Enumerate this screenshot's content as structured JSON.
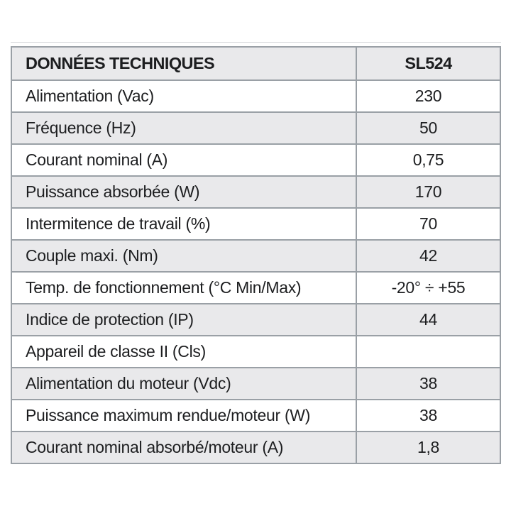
{
  "table": {
    "header": {
      "label": "DONNÉES TECHNIQUES",
      "model": "SL524"
    },
    "rows": [
      {
        "label": "Alimentation (Vac)",
        "value": "230"
      },
      {
        "label": "Fréquence (Hz)",
        "value": "50"
      },
      {
        "label": "Courant nominal (A)",
        "value": "0,75"
      },
      {
        "label": "Puissance absorbée (W)",
        "value": "170"
      },
      {
        "label": "Intermitence de travail (%)",
        "value": "70"
      },
      {
        "label": "Couple maxi. (Nm)",
        "value": "42"
      },
      {
        "label": "Temp. de fonctionnement (°C Min/Max)",
        "value": "-20° ÷ +55"
      },
      {
        "label": "Indice de protection (IP)",
        "value": "44"
      },
      {
        "label": "Appareil de classe II (Cls)",
        "value": ""
      },
      {
        "label": "Alimentation du moteur (Vdc)",
        "value": "38"
      },
      {
        "label": "Puissance maximum rendue/moteur (W)",
        "value": "38"
      },
      {
        "label": "Courant nominal absorbé/moteur (A)",
        "value": "1,8"
      }
    ],
    "colors": {
      "header_bg": "#e9e9eb",
      "row_alt_bg": "#e9e9eb",
      "row_bg": "#ffffff",
      "border": "#9aa0a6",
      "text": "#1d1e20"
    }
  }
}
